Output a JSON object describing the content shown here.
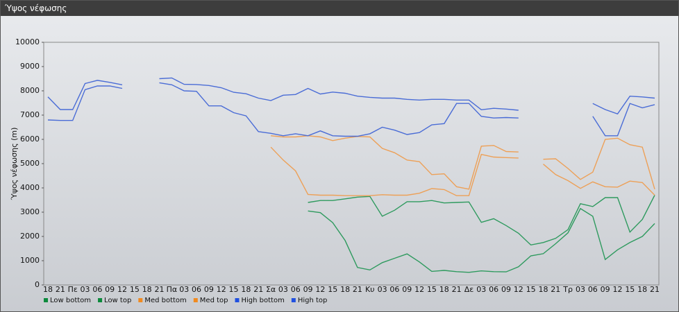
{
  "chart_data": {
    "type": "line",
    "title": "Ύψος νέφωσης",
    "ylabel": "Ύψος νέφωσης (m)",
    "categories": [
      "18",
      "21",
      "Πε",
      "03",
      "06",
      "09",
      "12",
      "15",
      "18",
      "21",
      "Πα",
      "03",
      "06",
      "09",
      "12",
      "15",
      "18",
      "21",
      "Σα",
      "03",
      "06",
      "09",
      "12",
      "15",
      "18",
      "21",
      "Κυ",
      "03",
      "06",
      "09",
      "12",
      "15",
      "18",
      "21",
      "Δε",
      "03",
      "06",
      "09",
      "12",
      "15",
      "18",
      "21",
      "Τρ",
      "03",
      "06",
      "09",
      "12",
      "15",
      "18",
      "21"
    ],
    "series": [
      {
        "name": "Low bottom",
        "color": "#2e9a5e",
        "marker_color": "#0c8a3c",
        "values": [
          null,
          null,
          null,
          null,
          null,
          null,
          null,
          null,
          null,
          null,
          null,
          null,
          null,
          null,
          null,
          null,
          null,
          null,
          null,
          null,
          null,
          3050,
          2980,
          2570,
          1830,
          720,
          620,
          920,
          1100,
          1280,
          950,
          560,
          600,
          550,
          520,
          580,
          550,
          540,
          750,
          1200,
          1290,
          1700,
          2150,
          3150,
          2830,
          1050,
          1450,
          1750,
          2000,
          2530
        ]
      },
      {
        "name": "Low top",
        "color": "#2e9a5e",
        "marker_color": "#0c8a3c",
        "values": [
          null,
          null,
          null,
          null,
          null,
          null,
          null,
          null,
          null,
          null,
          null,
          null,
          null,
          null,
          null,
          null,
          null,
          null,
          null,
          null,
          null,
          3400,
          3480,
          3480,
          3550,
          3620,
          3650,
          2830,
          3080,
          3430,
          3430,
          3480,
          3380,
          3400,
          3420,
          2580,
          2730,
          2450,
          2130,
          1650,
          1750,
          1920,
          2280,
          3350,
          3230,
          3600,
          3600,
          2180,
          2700,
          3700
        ]
      },
      {
        "name": "Med bottom",
        "color": "#eda057",
        "marker_color": "#f08a20",
        "values": [
          null,
          null,
          null,
          null,
          null,
          null,
          null,
          null,
          null,
          null,
          null,
          null,
          null,
          null,
          null,
          null,
          null,
          null,
          5680,
          5150,
          4700,
          3730,
          3700,
          3700,
          3680,
          3680,
          3680,
          3720,
          3700,
          3700,
          3780,
          3970,
          3930,
          3680,
          3680,
          5380,
          5270,
          5250,
          5230,
          null,
          4980,
          4550,
          4300,
          3980,
          4250,
          4050,
          4030,
          4280,
          4220,
          3700
        ]
      },
      {
        "name": "Med top",
        "color": "#eda057",
        "marker_color": "#f08a20",
        "values": [
          null,
          null,
          null,
          null,
          null,
          null,
          null,
          null,
          null,
          null,
          null,
          null,
          null,
          null,
          null,
          null,
          null,
          null,
          6150,
          6100,
          6100,
          6150,
          6100,
          5950,
          6050,
          6120,
          6100,
          5630,
          5450,
          5150,
          5080,
          4550,
          4580,
          4050,
          3950,
          5720,
          5750,
          5500,
          5480,
          null,
          5180,
          5200,
          4800,
          4350,
          4650,
          6000,
          6050,
          5780,
          5680,
          3950
        ]
      },
      {
        "name": "High bottom",
        "color": "#4a6cd6",
        "marker_color": "#2050e0",
        "values": [
          6800,
          6780,
          6780,
          8050,
          8200,
          8200,
          8100,
          null,
          null,
          8330,
          8250,
          8000,
          7980,
          7380,
          7380,
          7100,
          6970,
          6320,
          6250,
          6150,
          6230,
          6150,
          6350,
          6150,
          6130,
          6130,
          6230,
          6500,
          6380,
          6200,
          6280,
          6600,
          6650,
          7480,
          7480,
          6950,
          6880,
          6900,
          6880,
          null,
          null,
          null,
          null,
          null,
          6950,
          6150,
          6150,
          7480,
          7300,
          7430
        ]
      },
      {
        "name": "High top",
        "color": "#4a6cd6",
        "marker_color": "#2050e0",
        "values": [
          7750,
          7230,
          7230,
          8300,
          8430,
          8350,
          8250,
          null,
          null,
          8500,
          8530,
          8270,
          8260,
          8220,
          8130,
          7940,
          7880,
          7700,
          7600,
          7820,
          7850,
          8100,
          7870,
          7950,
          7900,
          7780,
          7730,
          7700,
          7700,
          7650,
          7620,
          7650,
          7650,
          7620,
          7620,
          7220,
          7280,
          7250,
          7200,
          null,
          null,
          null,
          null,
          null,
          7480,
          7230,
          7050,
          7780,
          7750,
          7700
        ]
      }
    ],
    "ylim": [
      0,
      10000
    ],
    "yticks": [
      0,
      1000,
      2000,
      3000,
      4000,
      5000,
      6000,
      7000,
      8000,
      9000,
      10000
    ],
    "grid": false
  }
}
